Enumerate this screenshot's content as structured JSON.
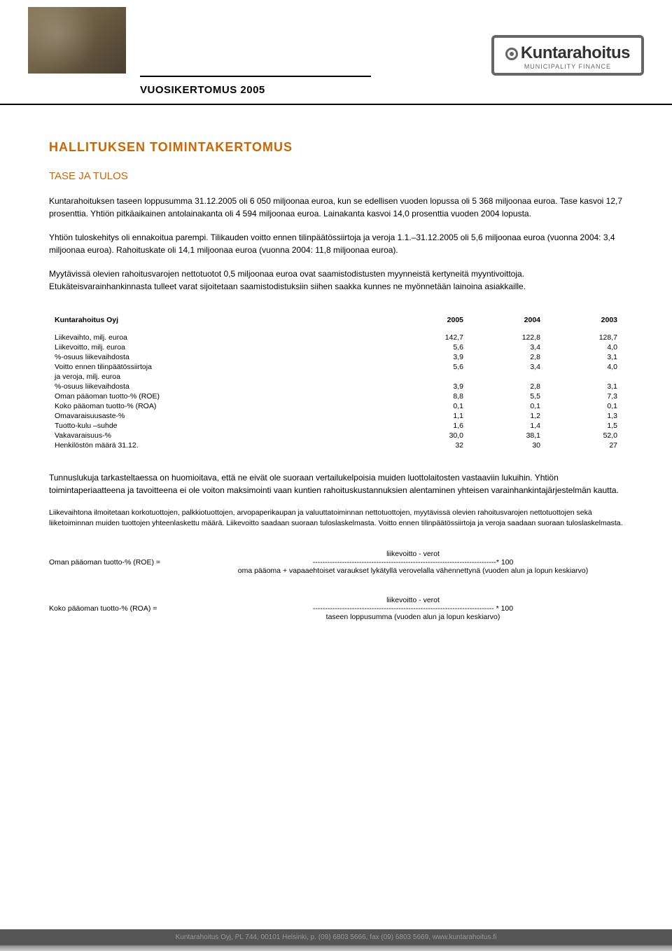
{
  "header": {
    "title": "VUOSIKERTOMUS 2005",
    "logo_main": "Kuntarahoitus",
    "logo_sub": "MUNICIPALITY FINANCE"
  },
  "h1": "HALLITUKSEN TOIMINTAKERTOMUS",
  "h2": "TASE JA TULOS",
  "para1": "Kuntarahoituksen taseen loppusumma 31.12.2005 oli 6 050 miljoonaa euroa, kun se edellisen vuoden lopussa oli 5 368 miljoonaa euroa. Tase kasvoi 12,7 prosenttia. Yhtiön pitkäaikainen antolainakanta oli 4 594 miljoonaa euroa. Lainakanta kasvoi 14,0 prosenttia vuoden 2004 lopusta.",
  "para2": "Yhtiön tuloskehitys oli ennakoitua parempi. Tilikauden voitto ennen tilinpäätössiirtoja ja veroja 1.1.–31.12.2005 oli 5,6 miljoonaa euroa (vuonna 2004: 3,4 miljoonaa euroa). Rahoituskate oli 14,1 miljoonaa euroa (vuonna 2004: 11,8 miljoonaa euroa).",
  "para3": "Myytävissä olevien rahoitusvarojen nettotuotot 0,5 miljoonaa euroa ovat saamistodistusten myynneistä kertyneitä myyntivoittoja. Etukäteisvarainhankinnasta tulleet varat sijoitetaan saamistodistuksiin siihen saakka kunnes ne myönnetään lainoina asiakkaille.",
  "table": {
    "header": [
      "Kuntarahoitus Oyj",
      "2005",
      "2004",
      "2003"
    ],
    "rows": [
      [
        "Liikevaihto, milj. euroa",
        "142,7",
        "122,8",
        "128,7"
      ],
      [
        "Liikevoitto, milj. euroa",
        "5,6",
        "3,4",
        "4,0"
      ],
      [
        "%-osuus liikevaihdosta",
        "3,9",
        "2,8",
        "3,1"
      ],
      [
        "Voitto ennen tilinpäätössiirtoja",
        "5,6",
        "3,4",
        "4,0"
      ],
      [
        "ja veroja, milj. euroa",
        "",
        "",
        ""
      ],
      [
        "%-osuus liikevaihdosta",
        "3,9",
        "2,8",
        "3,1"
      ],
      [
        "Oman pääoman tuotto-% (ROE)",
        "8,8",
        "5,5",
        "7,3"
      ],
      [
        "Koko pääoman tuotto-% (ROA)",
        "0,1",
        "0,1",
        "0,1"
      ],
      [
        "Omavaraisuusaste-%",
        "1,1",
        "1,2",
        "1,3"
      ],
      [
        "Tuotto-kulu –suhde",
        "1,6",
        "1,4",
        "1,5"
      ],
      [
        "Vakavaraisuus-%",
        "30,0",
        "38,1",
        "52,0"
      ],
      [
        "Henkilöstön määrä 31.12.",
        "32",
        "30",
        "27"
      ]
    ]
  },
  "para4": "Tunnuslukuja tarkasteltaessa on huomioitava, että ne eivät ole suoraan vertailukelpoisia muiden luottolaitosten vastaaviin lukuihin. Yhtiön toimintaperiaatteena ja tavoitteena ei ole voiton maksimointi vaan kuntien rahoituskustannuksien alentaminen yhteisen varainhankintajärjestelmän kautta.",
  "para5": "Liikevaihtona ilmoitetaan korkotuottojen, palkkiotuottojen, arvopaperikaupan ja valuuttatoiminnan nettotuottojen, myytävissä olevien rahoitusvarojen nettotuottojen sekä liiketoiminnan muiden tuottojen yhteenlaskettu määrä. Liikevoitto saadaan suoraan tuloslaskelmasta. Voitto ennen tilinpäätössiirtoja ja veroja saadaan suoraan tuloslaskelmasta.",
  "formula1": {
    "label": "Oman pääoman tuotto-% (ROE) =",
    "numerator": "liikevoitto - verot",
    "line": "---------------------------------------------------------------------------* 100",
    "denominator": "oma pääoma + vapaaehtoiset varaukset lykätyllä verovelalla vähennettynä (vuoden alun ja lopun keskiarvo)"
  },
  "formula2": {
    "label": "Koko pääoman tuotto-% (ROA) =",
    "numerator": "liikevoitto - verot",
    "line": "-------------------------------------------------------------------------- * 100",
    "denominator": "taseen loppusumma (vuoden alun ja lopun keskiarvo)"
  },
  "footer": "Kuntarahoitus Oyj, PL 744, 00101 Helsinki, p. (09) 6803 5666, fax (09) 6803 5669, www.kuntarahoitus.fi"
}
